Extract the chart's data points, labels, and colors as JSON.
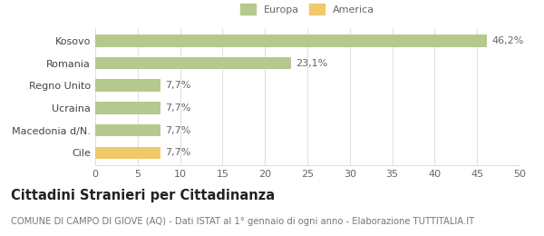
{
  "categories": [
    "Cile",
    "Macedonia d/N.",
    "Ucraina",
    "Regno Unito",
    "Romania",
    "Kosovo"
  ],
  "values": [
    7.7,
    7.7,
    7.7,
    7.7,
    23.1,
    46.2
  ],
  "bar_colors": [
    "#f0c96a",
    "#b5c98e",
    "#b5c98e",
    "#b5c98e",
    "#b5c98e",
    "#b5c98e"
  ],
  "value_labels": [
    "7,7%",
    "7,7%",
    "7,7%",
    "7,7%",
    "23,1%",
    "46,2%"
  ],
  "xlim": [
    0,
    50
  ],
  "xticks": [
    0,
    5,
    10,
    15,
    20,
    25,
    30,
    35,
    40,
    45,
    50
  ],
  "legend_labels": [
    "Europa",
    "America"
  ],
  "legend_colors": [
    "#b5c98e",
    "#f0c96a"
  ],
  "title": "Cittadini Stranieri per Cittadinanza",
  "subtitle": "COMUNE DI CAMPO DI GIOVE (AQ) - Dati ISTAT al 1° gennaio di ogni anno - Elaborazione TUTTITALIA.IT",
  "background_color": "#ffffff",
  "bar_height": 0.55,
  "grid_color": "#e0e0e0",
  "label_fontsize": 8,
  "tick_fontsize": 8,
  "title_fontsize": 10.5,
  "subtitle_fontsize": 7.2,
  "yticklabel_color": "#555555"
}
